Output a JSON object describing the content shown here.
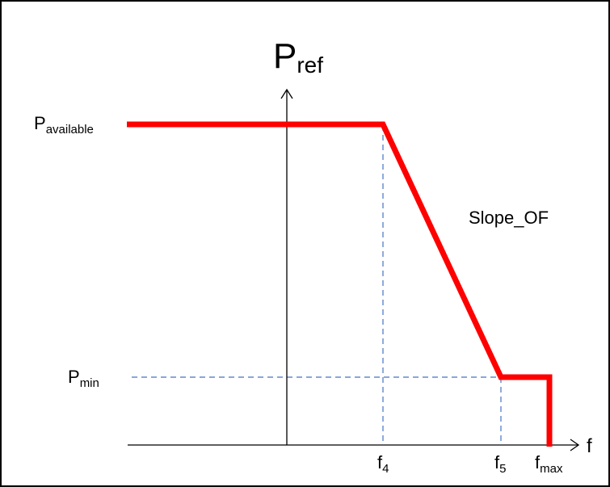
{
  "labels": {
    "y_axis": {
      "main": "P",
      "sub": "ref"
    },
    "p_available": {
      "main": "P",
      "sub": "available"
    },
    "p_min": {
      "main": "P",
      "sub": "min"
    },
    "slope": "Slope_OF",
    "x_axis": "f",
    "f4": {
      "main": "f",
      "sub": "4"
    },
    "f5": {
      "main": "f",
      "sub": "5"
    },
    "fmax": {
      "main": "f",
      "sub": "max"
    }
  },
  "colors": {
    "curve": "#ff0000",
    "guide": "#4472c4",
    "axis": "#000000",
    "frame": "#000000"
  }
}
